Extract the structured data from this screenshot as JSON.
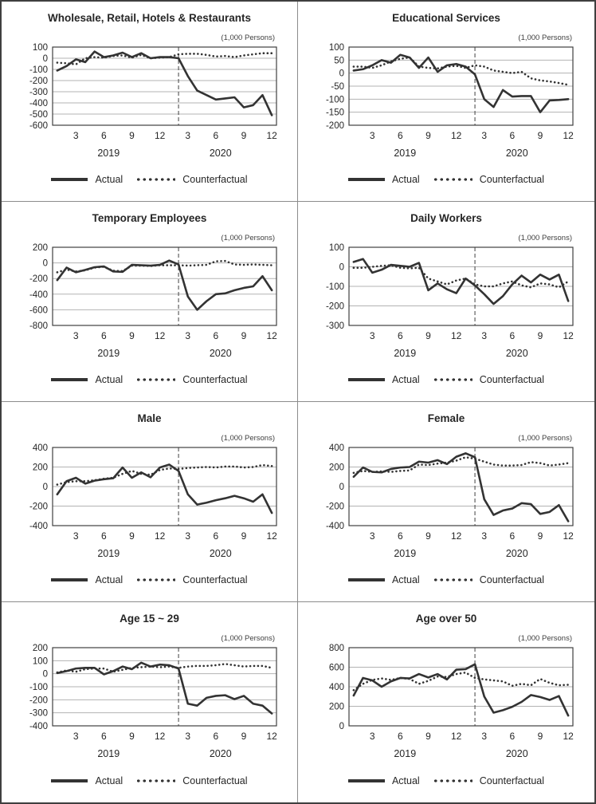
{
  "legend": {
    "actual_label": "Actual",
    "counterfactual_label": "Counterfactual"
  },
  "colors": {
    "series_line": "#333333",
    "grid_line": "#b3b3b3",
    "axis_text": "#262626",
    "plot_border": "#404040",
    "divider_line": "#404040",
    "panel_divider": "#8c8c8c",
    "outer_border": "#3f3f3f",
    "background": "#ffffff"
  },
  "x_axis": {
    "months_total": 24,
    "tick_months": [
      3,
      6,
      9,
      12,
      15,
      18,
      21,
      24
    ],
    "tick_labels": [
      "3",
      "6",
      "9",
      "12",
      "3",
      "6",
      "9",
      "12"
    ],
    "year_labels": [
      {
        "label": "2019",
        "center_month": 6.5
      },
      {
        "label": "2020",
        "center_month": 18.5
      }
    ]
  },
  "chart_data": [
    {
      "type": "line",
      "title": "Wholesale, Retail, Hotels & Restaurants",
      "unit": "(1,000 Persons)",
      "ylim": [
        -600,
        100
      ],
      "ytick_step": 100,
      "divider_month": 14,
      "series": [
        {
          "name": "Actual",
          "line_style": "solid",
          "values": [
            -110,
            -70,
            -10,
            -35,
            60,
            10,
            25,
            50,
            10,
            45,
            0,
            10,
            10,
            0,
            -160,
            -290,
            -330,
            -370,
            -360,
            -350,
            -440,
            -420,
            -330,
            -510
          ]
        },
        {
          "name": "Counterfactual",
          "line_style": "dotted",
          "values": [
            -40,
            -45,
            -55,
            0,
            10,
            5,
            20,
            25,
            5,
            30,
            0,
            5,
            10,
            35,
            40,
            40,
            30,
            15,
            20,
            10,
            25,
            35,
            45,
            45
          ]
        }
      ]
    },
    {
      "type": "line",
      "title": "Educational Services",
      "unit": "(1,000 Persons)",
      "ylim": [
        -200,
        100
      ],
      "ytick_step": 50,
      "divider_month": 14,
      "series": [
        {
          "name": "Actual",
          "line_style": "solid",
          "values": [
            10,
            15,
            30,
            50,
            40,
            70,
            60,
            20,
            60,
            5,
            30,
            35,
            25,
            -5,
            -100,
            -130,
            -65,
            -90,
            -88,
            -88,
            -150,
            -105,
            -103,
            -100
          ]
        },
        {
          "name": "Counterfactual",
          "line_style": "dotted",
          "values": [
            25,
            25,
            20,
            30,
            45,
            55,
            60,
            25,
            20,
            18,
            25,
            28,
            20,
            30,
            25,
            10,
            5,
            0,
            5,
            -20,
            -28,
            -32,
            -38,
            -45
          ]
        }
      ]
    },
    {
      "type": "line",
      "title": "Temporary Employees",
      "unit": "(1,000 Persons)",
      "ylim": [
        -800,
        200
      ],
      "ytick_step": 200,
      "divider_month": 14,
      "series": [
        {
          "name": "Actual",
          "line_style": "solid",
          "values": [
            -220,
            -60,
            -120,
            -90,
            -55,
            -45,
            -110,
            -115,
            -25,
            -30,
            -35,
            -25,
            30,
            -20,
            -430,
            -600,
            -490,
            -400,
            -390,
            -350,
            -320,
            -300,
            -170,
            -350
          ]
        },
        {
          "name": "Counterfactual",
          "line_style": "dotted",
          "values": [
            -120,
            -85,
            -110,
            -95,
            -60,
            -50,
            -100,
            -105,
            -35,
            -35,
            -40,
            -30,
            -30,
            -30,
            -35,
            -30,
            -25,
            20,
            25,
            -20,
            -25,
            -20,
            -25,
            -30
          ]
        }
      ]
    },
    {
      "type": "line",
      "title": "Daily Workers",
      "unit": "(1,000 Persons)",
      "ylim": [
        -300,
        100
      ],
      "ytick_step": 100,
      "divider_month": 14,
      "series": [
        {
          "name": "Actual",
          "line_style": "solid",
          "values": [
            25,
            40,
            -30,
            -15,
            10,
            5,
            0,
            20,
            -120,
            -85,
            -115,
            -135,
            -60,
            -95,
            -140,
            -190,
            -150,
            -90,
            -45,
            -80,
            -40,
            -65,
            -40,
            -175
          ]
        },
        {
          "name": "Counterfactual",
          "line_style": "dotted",
          "values": [
            -5,
            -5,
            0,
            5,
            8,
            -5,
            -8,
            -5,
            -60,
            -75,
            -90,
            -70,
            -60,
            -90,
            -100,
            -100,
            -85,
            -75,
            -95,
            -105,
            -85,
            -90,
            -105,
            -75
          ]
        }
      ]
    },
    {
      "type": "line",
      "title": "Male",
      "unit": "(1,000 Persons)",
      "ylim": [
        -400,
        400
      ],
      "ytick_step": 200,
      "divider_month": 14,
      "series": [
        {
          "name": "Actual",
          "line_style": "solid",
          "values": [
            -80,
            55,
            90,
            30,
            60,
            75,
            85,
            195,
            90,
            145,
            95,
            195,
            225,
            160,
            -80,
            -185,
            -165,
            -140,
            -120,
            -95,
            -120,
            -155,
            -80,
            -270
          ]
        },
        {
          "name": "Counterfactual",
          "line_style": "dotted",
          "values": [
            20,
            45,
            55,
            55,
            65,
            80,
            90,
            130,
            160,
            130,
            120,
            170,
            185,
            180,
            190,
            195,
            200,
            195,
            205,
            205,
            195,
            200,
            220,
            210
          ]
        }
      ]
    },
    {
      "type": "line",
      "title": "Female",
      "unit": "(1,000 Persons)",
      "ylim": [
        -400,
        400
      ],
      "ytick_step": 200,
      "divider_month": 14,
      "series": [
        {
          "name": "Actual",
          "line_style": "solid",
          "values": [
            100,
            195,
            150,
            145,
            180,
            195,
            200,
            255,
            245,
            270,
            230,
            305,
            340,
            300,
            -130,
            -290,
            -245,
            -225,
            -170,
            -180,
            -280,
            -260,
            -190,
            -355
          ]
        },
        {
          "name": "Counterfactual",
          "line_style": "dotted",
          "values": [
            140,
            160,
            150,
            155,
            150,
            160,
            165,
            225,
            220,
            235,
            245,
            265,
            300,
            285,
            255,
            225,
            215,
            215,
            220,
            250,
            240,
            215,
            225,
            240
          ]
        }
      ]
    },
    {
      "type": "line",
      "title": "Age 15 ~ 29",
      "unit": "(1,000 Persons)",
      "ylim": [
        -400,
        200
      ],
      "ytick_step": 100,
      "divider_month": 14,
      "series": [
        {
          "name": "Actual",
          "line_style": "solid",
          "values": [
            5,
            20,
            40,
            45,
            45,
            -5,
            20,
            55,
            35,
            85,
            55,
            70,
            65,
            40,
            -230,
            -245,
            -185,
            -170,
            -165,
            -195,
            -170,
            -230,
            -245,
            -305
          ]
        },
        {
          "name": "Counterfactual",
          "line_style": "dotted",
          "values": [
            10,
            25,
            15,
            35,
            40,
            40,
            15,
            30,
            45,
            50,
            55,
            50,
            55,
            45,
            55,
            60,
            60,
            65,
            75,
            65,
            55,
            60,
            60,
            45
          ]
        }
      ]
    },
    {
      "type": "line",
      "title": "Age over 50",
      "unit": "(1,000 Persons)",
      "ylim": [
        0,
        800
      ],
      "ytick_step": 200,
      "divider_month": 14,
      "series": [
        {
          "name": "Actual",
          "line_style": "solid",
          "values": [
            310,
            490,
            465,
            400,
            455,
            490,
            485,
            530,
            495,
            530,
            475,
            575,
            580,
            630,
            300,
            135,
            160,
            195,
            245,
            315,
            295,
            265,
            305,
            105
          ]
        },
        {
          "name": "Counterfactual",
          "line_style": "dotted",
          "values": [
            365,
            430,
            470,
            485,
            470,
            490,
            480,
            430,
            460,
            505,
            500,
            530,
            545,
            490,
            475,
            465,
            455,
            410,
            430,
            415,
            480,
            440,
            415,
            420
          ]
        }
      ]
    }
  ]
}
